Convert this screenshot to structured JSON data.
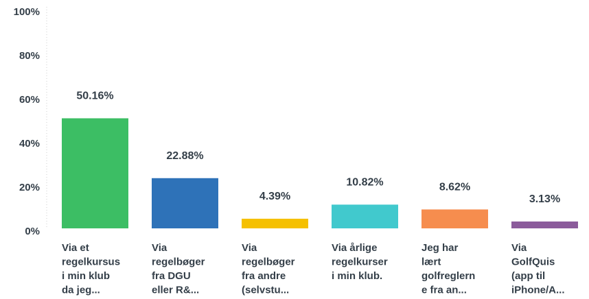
{
  "chart_data": {
    "type": "bar",
    "categories": [
      [
        "Via et",
        "regelkursus",
        "i min klub",
        "da jeg..."
      ],
      [
        "Via",
        "regelbøger",
        "fra DGU",
        "eller R&..."
      ],
      [
        "Via",
        "regelbøger",
        "fra andre",
        "(selvstu..."
      ],
      [
        "Via årlige",
        "regelkurser",
        "i min klub."
      ],
      [
        "Jeg har",
        "lært",
        "golfreglern",
        "e fra an..."
      ],
      [
        "Via",
        "GolfQuis",
        "(app til",
        "iPhone/A..."
      ]
    ],
    "values": [
      50.16,
      22.88,
      4.39,
      10.82,
      8.62,
      3.13
    ],
    "value_labels": [
      "50.16%",
      "22.88%",
      "4.39%",
      "10.82%",
      "8.62%",
      "3.13%"
    ],
    "colors": [
      "#3cbe64",
      "#2e72b8",
      "#f5c000",
      "#41c9cd",
      "#f68d4e",
      "#8b5b9b"
    ],
    "ylim": [
      0,
      100
    ],
    "yticks": [
      {
        "value": 0,
        "label": "0%"
      },
      {
        "value": 20,
        "label": "20%"
      },
      {
        "value": 40,
        "label": "40%"
      },
      {
        "value": 60,
        "label": "60%"
      },
      {
        "value": 80,
        "label": "80%"
      },
      {
        "value": 100,
        "label": "100%"
      }
    ],
    "grid": false
  }
}
